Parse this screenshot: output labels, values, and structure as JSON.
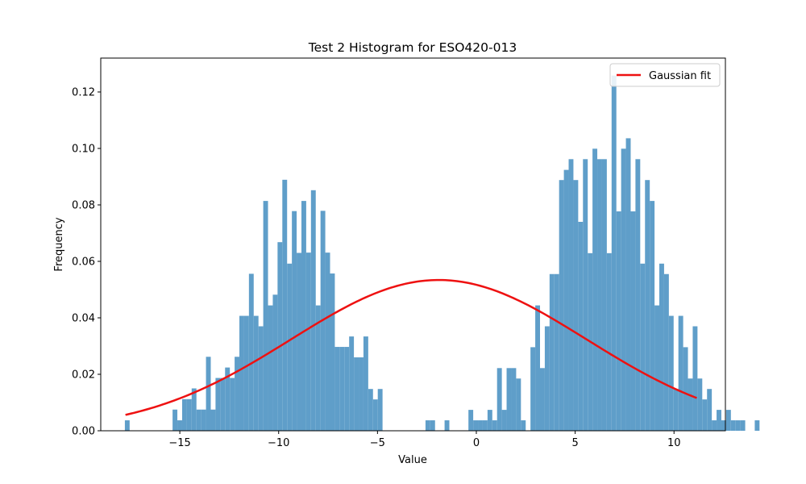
{
  "chart_data": {
    "type": "bar",
    "title": "Test 2 Histogram for ESO420-013",
    "xlabel": "Value",
    "ylabel": "Frequency",
    "xlim": [
      -19.0,
      12.6
    ],
    "ylim": [
      0,
      0.132
    ],
    "xticks": [
      -15,
      -10,
      -5,
      0,
      5,
      10
    ],
    "xtick_labels": [
      "−15",
      "−10",
      "−5",
      "0",
      "5",
      "10"
    ],
    "yticks": [
      0.0,
      0.02,
      0.04,
      0.06,
      0.08,
      0.1,
      0.12
    ],
    "ytick_labels": [
      "0.00",
      "0.02",
      "0.04",
      "0.06",
      "0.08",
      "0.10",
      "0.12"
    ],
    "grid": false,
    "legend": {
      "position": "top-right",
      "entries": [
        "Gaussian fit"
      ]
    },
    "series": [
      {
        "kind": "histogram",
        "color": "#5f9ec9",
        "bin_start": -17.78,
        "bin_width": 0.2414,
        "values": [
          0.0037,
          0,
          0,
          0,
          0,
          0,
          0,
          0,
          0,
          0,
          0.0075,
          0.0037,
          0.0112,
          0.0112,
          0.015,
          0.0075,
          0.0075,
          0.0262,
          0.0075,
          0.0187,
          0.0187,
          0.0224,
          0.0187,
          0.0262,
          0.0407,
          0.0407,
          0.0556,
          0.0407,
          0.037,
          0.0814,
          0.0444,
          0.0482,
          0.0668,
          0.0889,
          0.0592,
          0.0778,
          0.063,
          0.0814,
          0.0631,
          0.0852,
          0.0444,
          0.0779,
          0.0631,
          0.0557,
          0.0297,
          0.0297,
          0.0297,
          0.0334,
          0.026,
          0.026,
          0.0334,
          0.0148,
          0.0111,
          0.0148,
          0,
          0,
          0,
          0,
          0,
          0,
          0,
          0,
          0,
          0.0037,
          0.0037,
          0,
          0,
          0.0037,
          0,
          0,
          0,
          0,
          0.0074,
          0.0037,
          0.0037,
          0.0037,
          0.0074,
          0.0037,
          0.0222,
          0.0074,
          0.0222,
          0.0222,
          0.0185,
          0.0037,
          0,
          0.0296,
          0.0444,
          0.0222,
          0.037,
          0.0555,
          0.0555,
          0.0888,
          0.0924,
          0.0962,
          0.0888,
          0.074,
          0.0962,
          0.0629,
          0.0999,
          0.0962,
          0.0962,
          0.0629,
          0.1258,
          0.0777,
          0.0999,
          0.1036,
          0.0777,
          0.0962,
          0.0592,
          0.0888,
          0.0814,
          0.0444,
          0.0592,
          0.0555,
          0.0407,
          0.0148,
          0.0407,
          0.0296,
          0.0185,
          0.037,
          0.0185,
          0.0111,
          0.0148,
          0.0037,
          0.0074,
          0.0037,
          0.0074,
          0.0037,
          0.0037,
          0.0037,
          0.0,
          0.0,
          0.0037
        ]
      },
      {
        "kind": "line",
        "name": "Gaussian fit",
        "color": "#ee1111",
        "mean": -1.9,
        "std": 7.47,
        "peak": 0.0534,
        "x_range": [
          -17.75,
          11.15
        ]
      }
    ]
  }
}
